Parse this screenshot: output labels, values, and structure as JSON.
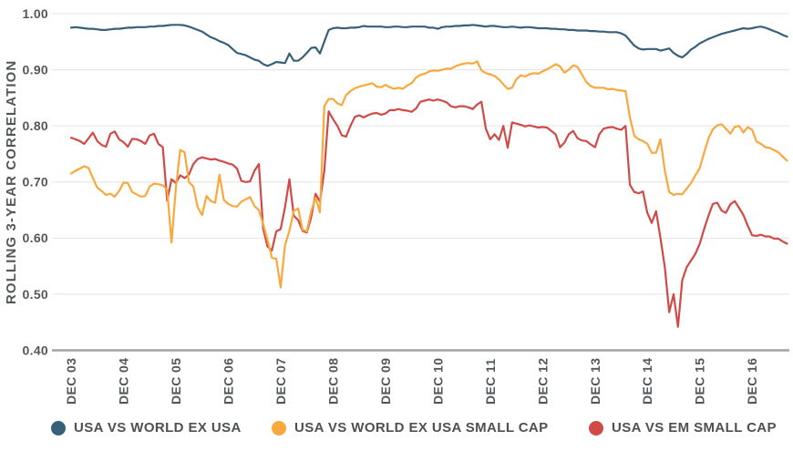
{
  "chart_data": {
    "type": "line",
    "title": "",
    "ylabel": "ROLLING 3-YEAR CORRELATION",
    "xlabel": "",
    "ylim": [
      0.4,
      1.0
    ],
    "grid": "horizontal",
    "legend_position": "bottom",
    "y_ticks": [
      {
        "label": "1.00",
        "value": 1.0
      },
      {
        "label": "0.90",
        "value": 0.9
      },
      {
        "label": "0.80",
        "value": 0.8
      },
      {
        "label": "0.70",
        "value": 0.7
      },
      {
        "label": "0.60",
        "value": 0.6
      },
      {
        "label": "0.50",
        "value": 0.5
      },
      {
        "label": "0.40",
        "value": 0.4
      }
    ],
    "x_tick_labels": [
      "DEC 03",
      "DEC 04",
      "DEC 05",
      "DEC 06",
      "DEC 07",
      "DEC 08",
      "DEC 09",
      "DEC 10",
      "DEC 11",
      "DEC 12",
      "DEC 13",
      "DEC 14",
      "DEC 15",
      "DEC 16"
    ],
    "points_per_x_tick": 12,
    "series": [
      {
        "name": "USA VS WORLD EX USA",
        "color": "#386179",
        "values": [
          0.975,
          0.976,
          0.975,
          0.974,
          0.973,
          0.973,
          0.972,
          0.971,
          0.971,
          0.972,
          0.973,
          0.973,
          0.974,
          0.975,
          0.975,
          0.976,
          0.976,
          0.976,
          0.977,
          0.977,
          0.978,
          0.978,
          0.979,
          0.98,
          0.98,
          0.98,
          0.979,
          0.977,
          0.974,
          0.971,
          0.968,
          0.963,
          0.958,
          0.955,
          0.951,
          0.948,
          0.944,
          0.937,
          0.93,
          0.928,
          0.926,
          0.922,
          0.918,
          0.916,
          0.91,
          0.907,
          0.91,
          0.914,
          0.913,
          0.912,
          0.929,
          0.916,
          0.916,
          0.922,
          0.93,
          0.939,
          0.94,
          0.929,
          0.95,
          0.971,
          0.974,
          0.975,
          0.974,
          0.974,
          0.975,
          0.975,
          0.976,
          0.978,
          0.977,
          0.977,
          0.977,
          0.977,
          0.976,
          0.976,
          0.977,
          0.977,
          0.976,
          0.976,
          0.977,
          0.977,
          0.977,
          0.977,
          0.975,
          0.975,
          0.973,
          0.976,
          0.977,
          0.977,
          0.978,
          0.978,
          0.979,
          0.979,
          0.98,
          0.979,
          0.978,
          0.977,
          0.978,
          0.978,
          0.977,
          0.976,
          0.976,
          0.977,
          0.976,
          0.975,
          0.976,
          0.976,
          0.975,
          0.974,
          0.974,
          0.974,
          0.973,
          0.973,
          0.972,
          0.972,
          0.971,
          0.971,
          0.97,
          0.97,
          0.97,
          0.969,
          0.969,
          0.968,
          0.968,
          0.967,
          0.967,
          0.967,
          0.965,
          0.961,
          0.952,
          0.943,
          0.938,
          0.936,
          0.937,
          0.937,
          0.937,
          0.934,
          0.936,
          0.938,
          0.93,
          0.925,
          0.922,
          0.928,
          0.936,
          0.941,
          0.947,
          0.951,
          0.955,
          0.958,
          0.961,
          0.964,
          0.966,
          0.968,
          0.97,
          0.972,
          0.974,
          0.973,
          0.974,
          0.976,
          0.977,
          0.975,
          0.972,
          0.969,
          0.966,
          0.962,
          0.959
        ]
      },
      {
        "name": "USA VS WORLD EX USA SMALL CAP",
        "color": "#F9A83C",
        "values": [
          0.715,
          0.72,
          0.724,
          0.728,
          0.725,
          0.707,
          0.69,
          0.684,
          0.677,
          0.679,
          0.674,
          0.684,
          0.699,
          0.698,
          0.682,
          0.678,
          0.674,
          0.675,
          0.692,
          0.697,
          0.696,
          0.694,
          0.686,
          0.592,
          0.69,
          0.757,
          0.753,
          0.7,
          0.692,
          0.655,
          0.641,
          0.675,
          0.666,
          0.663,
          0.713,
          0.668,
          0.661,
          0.657,
          0.656,
          0.665,
          0.669,
          0.673,
          0.657,
          0.65,
          0.625,
          0.597,
          0.565,
          0.563,
          0.512,
          0.587,
          0.613,
          0.648,
          0.653,
          0.615,
          0.612,
          0.648,
          0.672,
          0.646,
          0.835,
          0.848,
          0.848,
          0.84,
          0.837,
          0.855,
          0.862,
          0.867,
          0.87,
          0.872,
          0.874,
          0.876,
          0.87,
          0.869,
          0.873,
          0.869,
          0.866,
          0.868,
          0.866,
          0.872,
          0.876,
          0.886,
          0.891,
          0.893,
          0.897,
          0.899,
          0.898,
          0.9,
          0.902,
          0.902,
          0.906,
          0.909,
          0.911,
          0.912,
          0.911,
          0.915,
          0.899,
          0.894,
          0.892,
          0.889,
          0.883,
          0.874,
          0.866,
          0.868,
          0.883,
          0.89,
          0.888,
          0.892,
          0.894,
          0.893,
          0.897,
          0.901,
          0.905,
          0.91,
          0.906,
          0.895,
          0.9,
          0.908,
          0.905,
          0.892,
          0.878,
          0.871,
          0.868,
          0.868,
          0.868,
          0.865,
          0.866,
          0.864,
          0.863,
          0.862,
          0.815,
          0.782,
          0.776,
          0.773,
          0.768,
          0.752,
          0.752,
          0.776,
          0.72,
          0.682,
          0.677,
          0.679,
          0.678,
          0.688,
          0.698,
          0.712,
          0.725,
          0.752,
          0.778,
          0.794,
          0.801,
          0.803,
          0.795,
          0.786,
          0.798,
          0.8,
          0.788,
          0.798,
          0.793,
          0.772,
          0.768,
          0.762,
          0.761,
          0.757,
          0.753,
          0.745,
          0.738
        ]
      },
      {
        "name": "USA VS EM SMALL CAP",
        "color": "#D04A47",
        "values": [
          0.779,
          0.776,
          0.773,
          0.768,
          0.778,
          0.788,
          0.773,
          0.766,
          0.763,
          0.786,
          0.79,
          0.776,
          0.771,
          0.763,
          0.777,
          0.776,
          0.773,
          0.768,
          0.783,
          0.786,
          0.768,
          0.762,
          0.667,
          0.705,
          0.698,
          0.712,
          0.707,
          0.713,
          0.732,
          0.741,
          0.744,
          0.742,
          0.74,
          0.741,
          0.738,
          0.736,
          0.733,
          0.731,
          0.724,
          0.702,
          0.7,
          0.701,
          0.72,
          0.732,
          0.617,
          0.585,
          0.578,
          0.612,
          0.616,
          0.655,
          0.705,
          0.64,
          0.632,
          0.613,
          0.61,
          0.637,
          0.679,
          0.665,
          0.72,
          0.826,
          0.812,
          0.8,
          0.783,
          0.781,
          0.8,
          0.816,
          0.819,
          0.815,
          0.819,
          0.822,
          0.823,
          0.82,
          0.822,
          0.828,
          0.828,
          0.83,
          0.828,
          0.827,
          0.825,
          0.831,
          0.843,
          0.845,
          0.847,
          0.845,
          0.847,
          0.845,
          0.842,
          0.835,
          0.833,
          0.835,
          0.835,
          0.833,
          0.83,
          0.838,
          0.843,
          0.795,
          0.776,
          0.785,
          0.775,
          0.8,
          0.761,
          0.806,
          0.804,
          0.802,
          0.799,
          0.801,
          0.799,
          0.797,
          0.798,
          0.797,
          0.791,
          0.785,
          0.762,
          0.77,
          0.785,
          0.791,
          0.778,
          0.774,
          0.773,
          0.767,
          0.762,
          0.785,
          0.795,
          0.797,
          0.798,
          0.795,
          0.793,
          0.8,
          0.695,
          0.682,
          0.68,
          0.683,
          0.645,
          0.627,
          0.648,
          0.6,
          0.548,
          0.468,
          0.5,
          0.442,
          0.525,
          0.548,
          0.56,
          0.572,
          0.59,
          0.616,
          0.64,
          0.661,
          0.663,
          0.649,
          0.645,
          0.66,
          0.666,
          0.654,
          0.641,
          0.622,
          0.605,
          0.604,
          0.606,
          0.603,
          0.603,
          0.599,
          0.599,
          0.594,
          0.59
        ]
      }
    ],
    "style": {
      "gridline_color": "#E3E4E4",
      "axis_line_color": "#A2A4A6",
      "tick_label_color": "#54575A",
      "axis_title_color": "#54575A",
      "background": "#FFFFFF"
    }
  }
}
